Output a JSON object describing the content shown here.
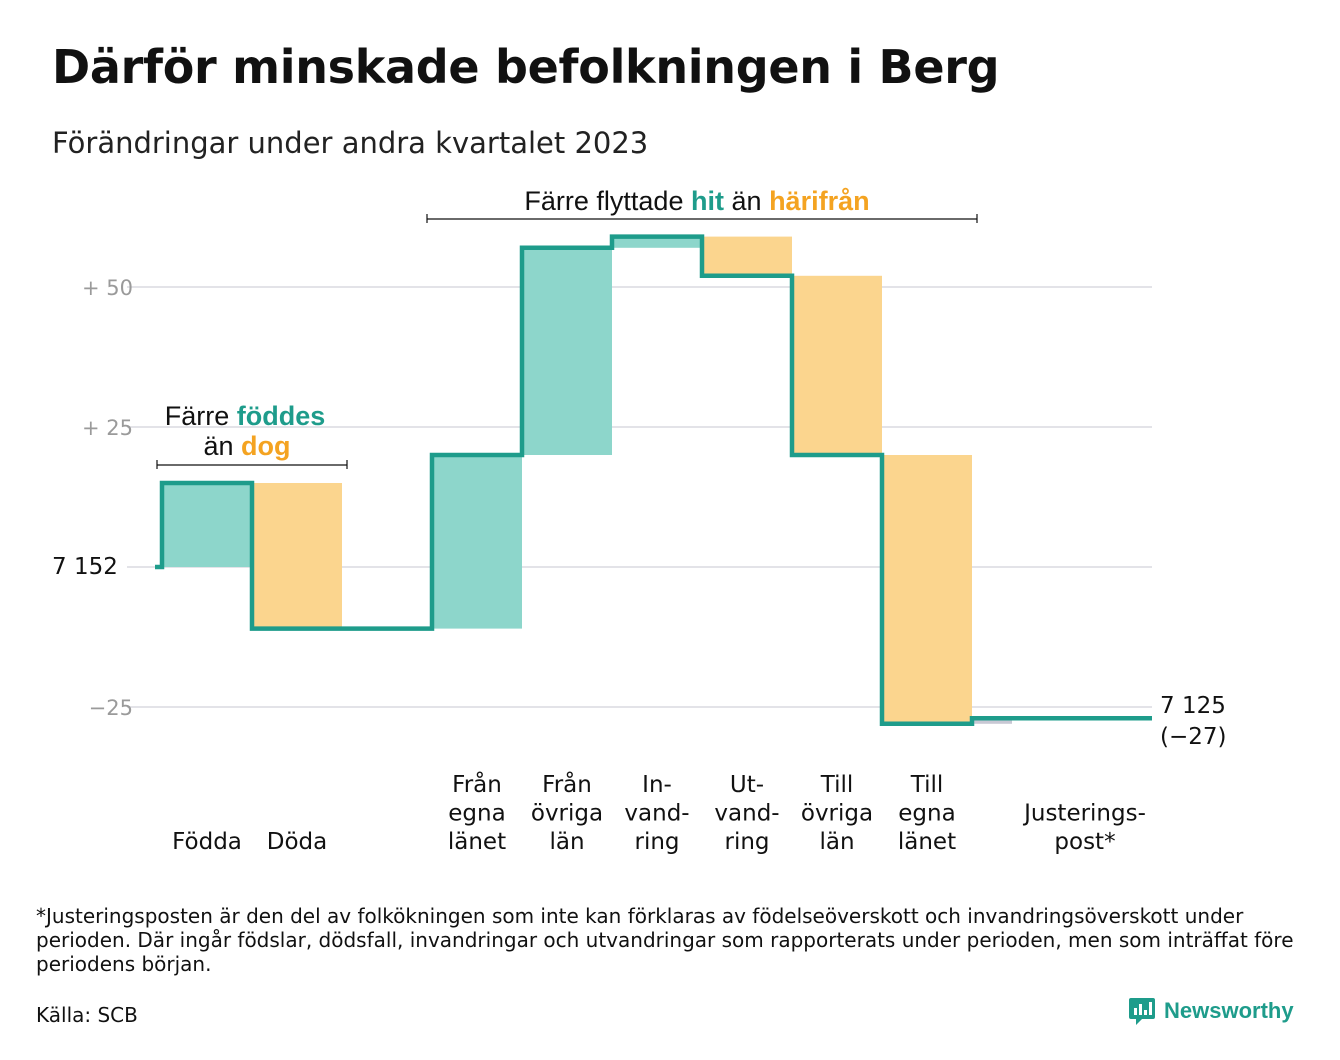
{
  "title": "Därför minskade befolkningen i Berg",
  "subtitle": "Förändringar under andra kvartalet 2023",
  "annotations": {
    "births": {
      "line1_prefix": "Färre",
      "line1_highlight": "föddes",
      "line2_prefix": "än",
      "line2_highlight": "dog"
    },
    "migration": {
      "prefix": "Färre flyttade",
      "highlight_in": "hit",
      "middle": "än",
      "highlight_out": "härifrån"
    }
  },
  "start_label": "7  152",
  "end_label": {
    "value": "7 125",
    "change": "(−27)"
  },
  "footnote": "*Justeringsposten är den del av folkökningen som inte kan förklaras av födelseöverskott och invandringsöverskott under perioden. Där ingår födslar, dödsfall, invandringar och utvandringar som rapporterats under perioden, men som inträffat före periodens början.",
  "source": "Källa: SCB",
  "brand": "Newsworthy",
  "colors": {
    "increase": "#8dd6cb",
    "decrease": "#fbd58e",
    "line": "#1e9c8b",
    "highlight_in": "#1e9c8b",
    "highlight_out": "#f4a321",
    "grid": "#e3e3e8"
  },
  "chart_data": {
    "type": "waterfall",
    "start_value": 7152,
    "end_value": 7125,
    "total_change": -27,
    "y_ticks": [
      {
        "value": 50,
        "label": "+  50"
      },
      {
        "value": 25,
        "label": "+  25"
      },
      {
        "value": 0,
        "label": ""
      },
      {
        "value": -25,
        "label": "−25"
      }
    ],
    "ylim": [
      -33,
      60
    ],
    "bars": [
      {
        "label": "Födda",
        "value": 15,
        "kind": "increase"
      },
      {
        "label": "Döda",
        "value": -26,
        "kind": "decrease"
      },
      {
        "label": "",
        "value": 0,
        "kind": "gap"
      },
      {
        "label": "Från\negna\nlänet",
        "value": 31,
        "kind": "increase"
      },
      {
        "label": "Från\növriga\nlän",
        "value": 37,
        "kind": "increase"
      },
      {
        "label": "In-\nvand-\nring",
        "value": 2,
        "kind": "increase"
      },
      {
        "label": "Ut-\nvand-\nring",
        "value": -7,
        "kind": "decrease"
      },
      {
        "label": "Till\növriga\nlän",
        "value": -32,
        "kind": "decrease"
      },
      {
        "label": "Till\negna\nlänet",
        "value": -48,
        "kind": "decrease"
      },
      {
        "label": "Justerings-\npost*",
        "value": 1,
        "kind": "adjustment"
      }
    ]
  }
}
